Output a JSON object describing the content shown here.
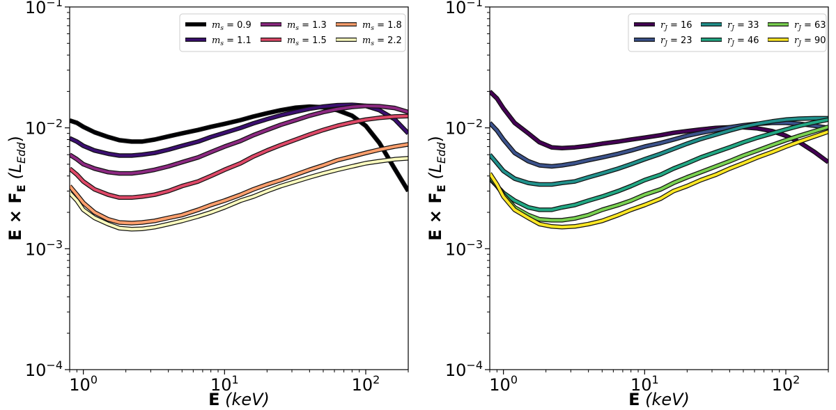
{
  "chart_data": [
    {
      "type": "line",
      "title": "",
      "xlabel_bold": "E",
      "xlabel_unit": "(keV)",
      "ylabel_bold": "E × F",
      "ylabel_sub": "E",
      "ylabel_unit": "(L",
      "ylabel_unit_sub": "Edd",
      "ylabel_close": ")",
      "x_scale": "log",
      "y_scale": "log",
      "xlim": [
        0.8,
        200
      ],
      "ylim": [
        0.0001,
        0.1
      ],
      "grid": false,
      "legend_position": "top-right",
      "legend_columns": 3,
      "x_ticks": [
        {
          "value": 1,
          "base": "10",
          "exp": "0"
        },
        {
          "value": 10,
          "base": "10",
          "exp": "1"
        },
        {
          "value": 100,
          "base": "10",
          "exp": "2"
        }
      ],
      "y_ticks": [
        {
          "value": 0.0001,
          "base": "10",
          "exp": "−4"
        },
        {
          "value": 0.001,
          "base": "10",
          "exp": "−3"
        },
        {
          "value": 0.01,
          "base": "10",
          "exp": "−2"
        },
        {
          "value": 0.1,
          "base": "10",
          "exp": "−1"
        }
      ],
      "x": [
        0.8,
        0.9,
        1.0,
        1.2,
        1.5,
        1.8,
        2.2,
        2.6,
        3.2,
        4.0,
        5.0,
        6.5,
        8.0,
        10,
        13,
        16,
        20,
        25,
        32,
        40,
        50,
        63,
        80,
        100,
        125,
        160,
        200
      ],
      "series": [
        {
          "var": "m",
          "sub": "s",
          "value": "0.9",
          "color": "#000004",
          "values": [
            0.0115,
            0.011,
            0.0102,
            0.0092,
            0.0084,
            0.0079,
            0.0077,
            0.0077,
            0.008,
            0.0085,
            0.009,
            0.0096,
            0.0102,
            0.0108,
            0.0116,
            0.0124,
            0.0132,
            0.014,
            0.0147,
            0.015,
            0.0148,
            0.014,
            0.0126,
            0.0104,
            0.0075,
            0.0046,
            0.003
          ]
        },
        {
          "var": "m",
          "sub": "s",
          "value": "1.1",
          "color": "#3b0f70",
          "values": [
            0.0082,
            0.0077,
            0.0071,
            0.0065,
            0.0061,
            0.0059,
            0.0059,
            0.006,
            0.0062,
            0.0066,
            0.0071,
            0.0077,
            0.0084,
            0.0091,
            0.01,
            0.0109,
            0.0118,
            0.0127,
            0.0136,
            0.0144,
            0.015,
            0.0154,
            0.0155,
            0.0152,
            0.014,
            0.0118,
            0.009
          ]
        },
        {
          "var": "m",
          "sub": "s",
          "value": "1.3",
          "color": "#8c2981",
          "values": [
            0.006,
            0.0055,
            0.005,
            0.0046,
            0.0043,
            0.0042,
            0.0042,
            0.0043,
            0.0045,
            0.0048,
            0.0052,
            0.0057,
            0.0063,
            0.007,
            0.0078,
            0.0087,
            0.0096,
            0.0106,
            0.0116,
            0.0126,
            0.0135,
            0.0143,
            0.0149,
            0.0152,
            0.0151,
            0.0146,
            0.0135
          ]
        },
        {
          "var": "m",
          "sub": "s",
          "value": "1.5",
          "color": "#de4968",
          "values": [
            0.0046,
            0.0041,
            0.0036,
            0.0031,
            0.0028,
            0.00265,
            0.00265,
            0.0027,
            0.0028,
            0.003,
            0.0033,
            0.0036,
            0.004,
            0.0045,
            0.0051,
            0.0058,
            0.0065,
            0.0072,
            0.008,
            0.0088,
            0.0096,
            0.0104,
            0.0111,
            0.0117,
            0.0121,
            0.0124,
            0.0125
          ]
        },
        {
          "var": "m",
          "sub": "s",
          "value": "1.8",
          "color": "#fe9f6d",
          "values": [
            0.0033,
            0.0028,
            0.0024,
            0.002,
            0.00175,
            0.00165,
            0.00163,
            0.00165,
            0.0017,
            0.0018,
            0.0019,
            0.0021,
            0.0023,
            0.0025,
            0.0028,
            0.0031,
            0.0034,
            0.0037,
            0.0041,
            0.0045,
            0.0049,
            0.0054,
            0.0058,
            0.0062,
            0.0066,
            0.007,
            0.0073
          ]
        },
        {
          "var": "m",
          "sub": "s",
          "value": "2.2",
          "color": "#fcfdbf",
          "values": [
            0.0029,
            0.0025,
            0.0021,
            0.0018,
            0.0016,
            0.00148,
            0.00145,
            0.00146,
            0.00151,
            0.0016,
            0.0017,
            0.00185,
            0.002,
            0.0022,
            0.0025,
            0.0027,
            0.003,
            0.0033,
            0.0036,
            0.0039,
            0.0042,
            0.0045,
            0.0048,
            0.0051,
            0.0053,
            0.0055,
            0.0056
          ]
        }
      ]
    },
    {
      "type": "line",
      "title": "",
      "xlabel_bold": "E",
      "xlabel_unit": "(keV)",
      "ylabel_bold": "E × F",
      "ylabel_sub": "E",
      "ylabel_unit": "(L",
      "ylabel_unit_sub": "Edd",
      "ylabel_close": ")",
      "x_scale": "log",
      "y_scale": "log",
      "xlim": [
        0.8,
        200
      ],
      "ylim": [
        0.0001,
        0.1
      ],
      "grid": false,
      "legend_position": "top-right",
      "legend_columns": 3,
      "x_ticks": [
        {
          "value": 1,
          "base": "10",
          "exp": "0"
        },
        {
          "value": 10,
          "base": "10",
          "exp": "1"
        },
        {
          "value": 100,
          "base": "10",
          "exp": "2"
        }
      ],
      "y_ticks": [
        {
          "value": 0.0001,
          "base": "10",
          "exp": "−4"
        },
        {
          "value": 0.001,
          "base": "10",
          "exp": "−3"
        },
        {
          "value": 0.01,
          "base": "10",
          "exp": "−2"
        },
        {
          "value": 0.1,
          "base": "10",
          "exp": "−1"
        }
      ],
      "x": [
        0.8,
        0.9,
        1.0,
        1.2,
        1.5,
        1.8,
        2.2,
        2.6,
        3.2,
        4.0,
        5.0,
        6.5,
        8.0,
        10,
        13,
        16,
        20,
        25,
        32,
        40,
        50,
        63,
        80,
        100,
        125,
        160,
        200
      ],
      "series": [
        {
          "var": "r",
          "sub": "J",
          "value": "16",
          "color": "#440154",
          "values": [
            0.02,
            0.0175,
            0.0145,
            0.011,
            0.009,
            0.0076,
            0.0069,
            0.0068,
            0.0069,
            0.0071,
            0.0074,
            0.0077,
            0.008,
            0.0083,
            0.0087,
            0.0091,
            0.0094,
            0.0097,
            0.01,
            0.0101,
            0.0101,
            0.0099,
            0.0094,
            0.0086,
            0.0076,
            0.0063,
            0.0052
          ]
        },
        {
          "var": "r",
          "sub": "J",
          "value": "23",
          "color": "#3b528b",
          "values": [
            0.011,
            0.0095,
            0.008,
            0.0062,
            0.0053,
            0.0049,
            0.0048,
            0.0049,
            0.0051,
            0.0054,
            0.0057,
            0.0061,
            0.0065,
            0.007,
            0.0075,
            0.008,
            0.0086,
            0.0091,
            0.0096,
            0.0101,
            0.0105,
            0.0108,
            0.011,
            0.011,
            0.0108,
            0.0104,
            0.01
          ]
        },
        {
          "var": "r",
          "sub": "J",
          "value": "33",
          "color": "#21918c",
          "values": [
            0.006,
            0.0051,
            0.0044,
            0.0038,
            0.0035,
            0.0034,
            0.0034,
            0.0035,
            0.0036,
            0.0039,
            0.0042,
            0.0046,
            0.005,
            0.0055,
            0.0061,
            0.0067,
            0.0074,
            0.0081,
            0.0088,
            0.0095,
            0.0102,
            0.0108,
            0.0113,
            0.0117,
            0.0119,
            0.012,
            0.012
          ]
        },
        {
          "var": "r",
          "sub": "J",
          "value": "46",
          "color": "#22a884",
          "values": [
            0.0038,
            0.0033,
            0.0029,
            0.0025,
            0.0022,
            0.0021,
            0.0021,
            0.0022,
            0.0023,
            0.0025,
            0.0027,
            0.003,
            0.0033,
            0.0037,
            0.0041,
            0.0046,
            0.0051,
            0.0057,
            0.0063,
            0.0069,
            0.0076,
            0.0083,
            0.009,
            0.0097,
            0.0104,
            0.0111,
            0.0117
          ]
        },
        {
          "var": "r",
          "sub": "J",
          "value": "63",
          "color": "#7ad151",
          "values": [
            0.004,
            0.0033,
            0.0028,
            0.0022,
            0.0019,
            0.00175,
            0.00172,
            0.00172,
            0.00178,
            0.0019,
            0.0021,
            0.0023,
            0.0025,
            0.0028,
            0.0031,
            0.0035,
            0.0039,
            0.0043,
            0.0048,
            0.0053,
            0.0059,
            0.0065,
            0.0072,
            0.0079,
            0.0086,
            0.0094,
            0.0102
          ]
        },
        {
          "var": "r",
          "sub": "J",
          "value": "90",
          "color": "#fde725",
          "values": [
            0.0042,
            0.0034,
            0.0027,
            0.0021,
            0.0018,
            0.0016,
            0.00153,
            0.00151,
            0.00153,
            0.0016,
            0.0017,
            0.0019,
            0.0021,
            0.0023,
            0.0026,
            0.003,
            0.0033,
            0.0037,
            0.0041,
            0.0046,
            0.0051,
            0.0057,
            0.0063,
            0.007,
            0.0077,
            0.0085,
            0.0093
          ]
        }
      ]
    }
  ]
}
